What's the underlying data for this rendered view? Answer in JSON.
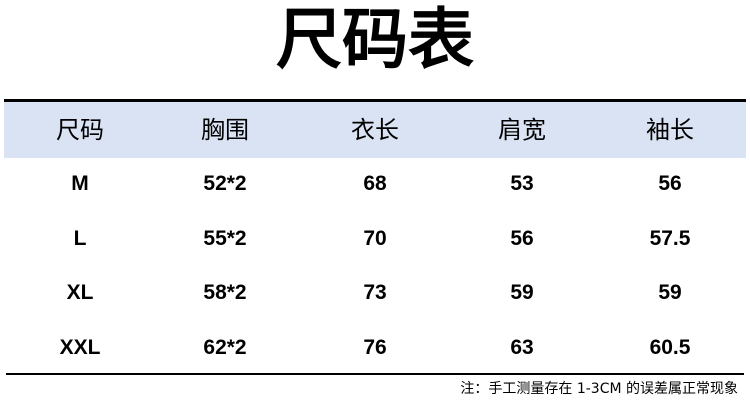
{
  "title": "尺码表",
  "columns": [
    "尺码",
    "胸围",
    "衣长",
    "肩宽",
    "袖长"
  ],
  "rows": [
    [
      "M",
      "52*2",
      "68",
      "53",
      "56"
    ],
    [
      "L",
      "55*2",
      "70",
      "56",
      "57.5"
    ],
    [
      "XL",
      "58*2",
      "73",
      "59",
      "59"
    ],
    [
      "XXL",
      "62*2",
      "76",
      "63",
      "60.5"
    ]
  ],
  "note": "注：手工测量存在 1-3CM 的误差属正常现象",
  "colors": {
    "header_bg": "#dae3f3",
    "rule": "#000000"
  }
}
